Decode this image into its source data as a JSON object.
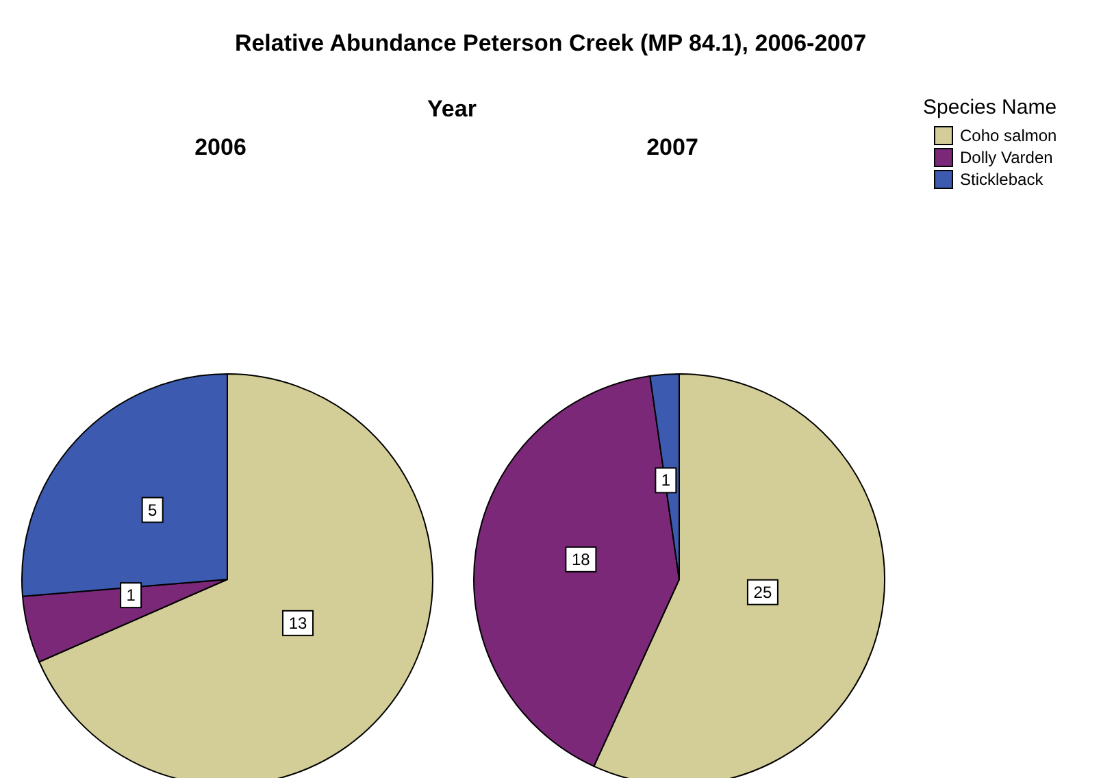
{
  "chart_data": {
    "type": "pie",
    "title": "Relative Abundance Peterson Creek (MP 84.1), 2006-2007",
    "annotations": [
      "Year"
    ],
    "legend_title": "Species Name",
    "legend": "top right",
    "categories": [
      "Coho salmon",
      "Dolly Varden",
      "Stickleback"
    ],
    "colors": [
      "#d3ce97",
      "#7b2879",
      "#3c5aaf"
    ],
    "data_labels": true,
    "series": [
      {
        "name": "2006",
        "values": [
          13,
          1,
          5
        ]
      },
      {
        "name": "2007",
        "values": [
          25,
          18,
          1
        ]
      }
    ]
  }
}
